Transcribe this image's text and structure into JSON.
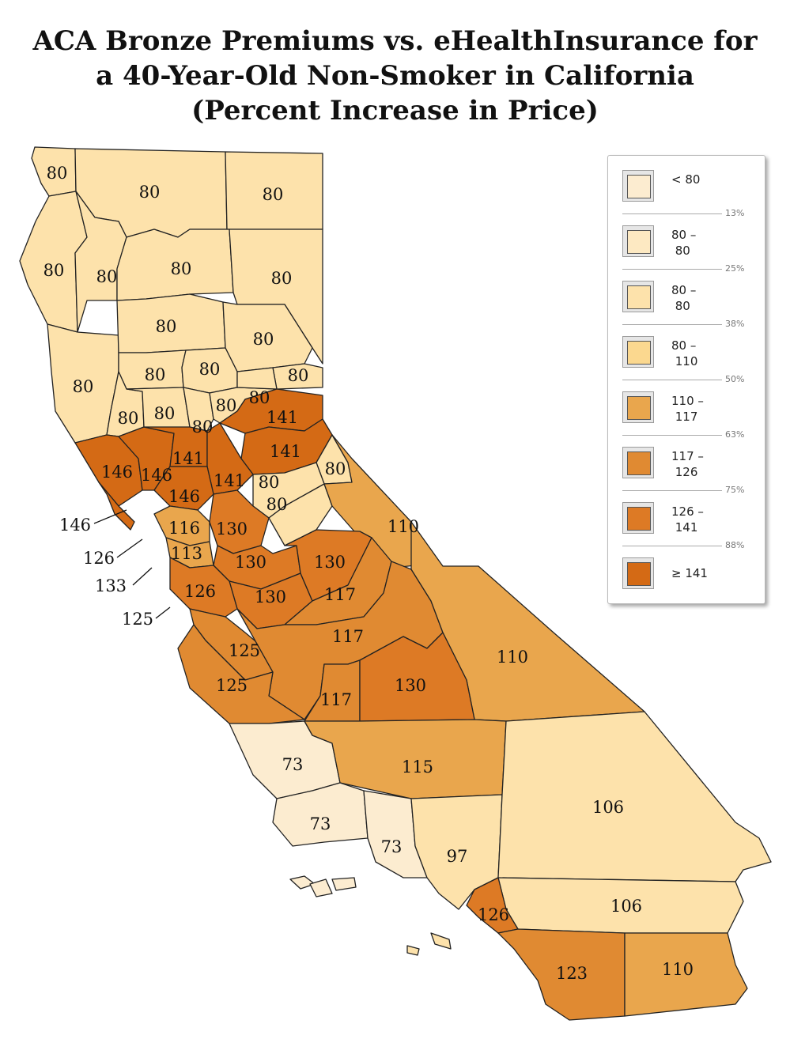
{
  "title": {
    "line1": "ACA Bronze Premiums vs. eHealthInsurance for",
    "line2": "a 40-Year-Old Non-Smoker in California",
    "line3": "(Percent Increase in Price)"
  },
  "colors": {
    "lt80": "#fcecd0",
    "c80": "#fde2ab",
    "c110": "#e9a64d",
    "c117": "#e08a32",
    "c126": "#dd7a25",
    "c141": "#d46a15",
    "stroke": "#222222"
  },
  "legend": {
    "items": [
      {
        "label": "< 80",
        "color": "#fcecd0"
      },
      {
        "label": "80 –\n 80",
        "color": "#fde9c2"
      },
      {
        "label": "80 –\n 80",
        "color": "#fde2ab"
      },
      {
        "label": "80 –\n 110",
        "color": "#fbd88f"
      },
      {
        "label": "110 –\n 117",
        "color": "#e9a64d"
      },
      {
        "label": "117 –\n 126",
        "color": "#e08a32"
      },
      {
        "label": "126 –\n 141",
        "color": "#dd7a25"
      },
      {
        "label": "≥ 141",
        "color": "#d46a15"
      }
    ],
    "percentiles": [
      "13%",
      "25%",
      "38%",
      "50%",
      "63%",
      "75%",
      "88%"
    ]
  },
  "county_values": [
    "80",
    "80",
    "80",
    "80",
    "80",
    "80",
    "80",
    "80",
    "80",
    "80",
    "80",
    "80",
    "80",
    "80",
    "80",
    "80",
    "80",
    "80",
    "80",
    "141",
    "141",
    "146",
    "146",
    "141",
    "141",
    "146",
    "80",
    "80",
    "80",
    "110",
    "116",
    "130",
    "113",
    "130",
    "130",
    "126",
    "130",
    "117",
    "117",
    "125",
    "125",
    "110",
    "117",
    "130",
    "73",
    "115",
    "73",
    "73",
    "97",
    "106",
    "106",
    "126",
    "123",
    "110"
  ],
  "callouts": [
    "146",
    "126",
    "133",
    "125"
  ]
}
